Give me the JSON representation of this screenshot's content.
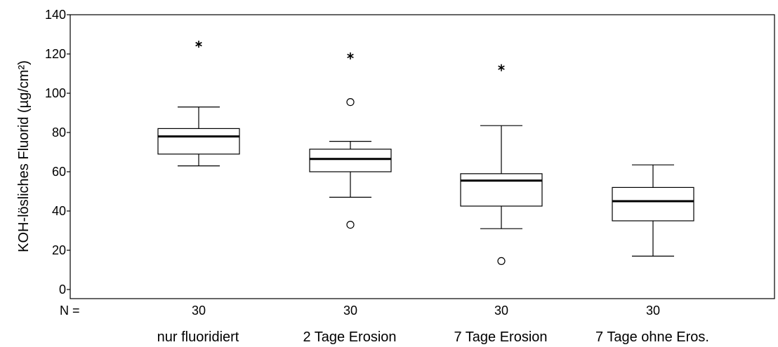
{
  "chart_data": {
    "type": "boxplot",
    "ylabel": "KOH-lösliches Fluorid (µg/cm²)",
    "ylim": [
      0,
      140
    ],
    "yticks": [
      0,
      20,
      40,
      60,
      80,
      100,
      120,
      140
    ],
    "n_label": "N =",
    "categories": [
      "nur fluoridiert",
      "2 Tage Erosion",
      "7 Tage Erosion",
      "7 Tage ohne Eros."
    ],
    "n": [
      "30",
      "30",
      "30",
      "30"
    ],
    "boxes": [
      {
        "whisker_low": 63,
        "q1": 69,
        "median": 78,
        "q3": 82,
        "whisker_high": 93,
        "outliers": [],
        "extremes": [
          125
        ]
      },
      {
        "whisker_low": 47,
        "q1": 60,
        "median": 66.5,
        "q3": 71.5,
        "whisker_high": 75.5,
        "outliers": [
          95.5,
          33
        ],
        "extremes": [
          119
        ]
      },
      {
        "whisker_low": 31,
        "q1": 42.5,
        "median": 55.5,
        "q3": 59,
        "whisker_high": 83.5,
        "outliers": [
          14.5
        ],
        "extremes": [
          113
        ]
      },
      {
        "whisker_low": 17,
        "q1": 35,
        "median": 45,
        "q3": 52,
        "whisker_high": 63.5,
        "outliers": [],
        "extremes": []
      }
    ]
  }
}
